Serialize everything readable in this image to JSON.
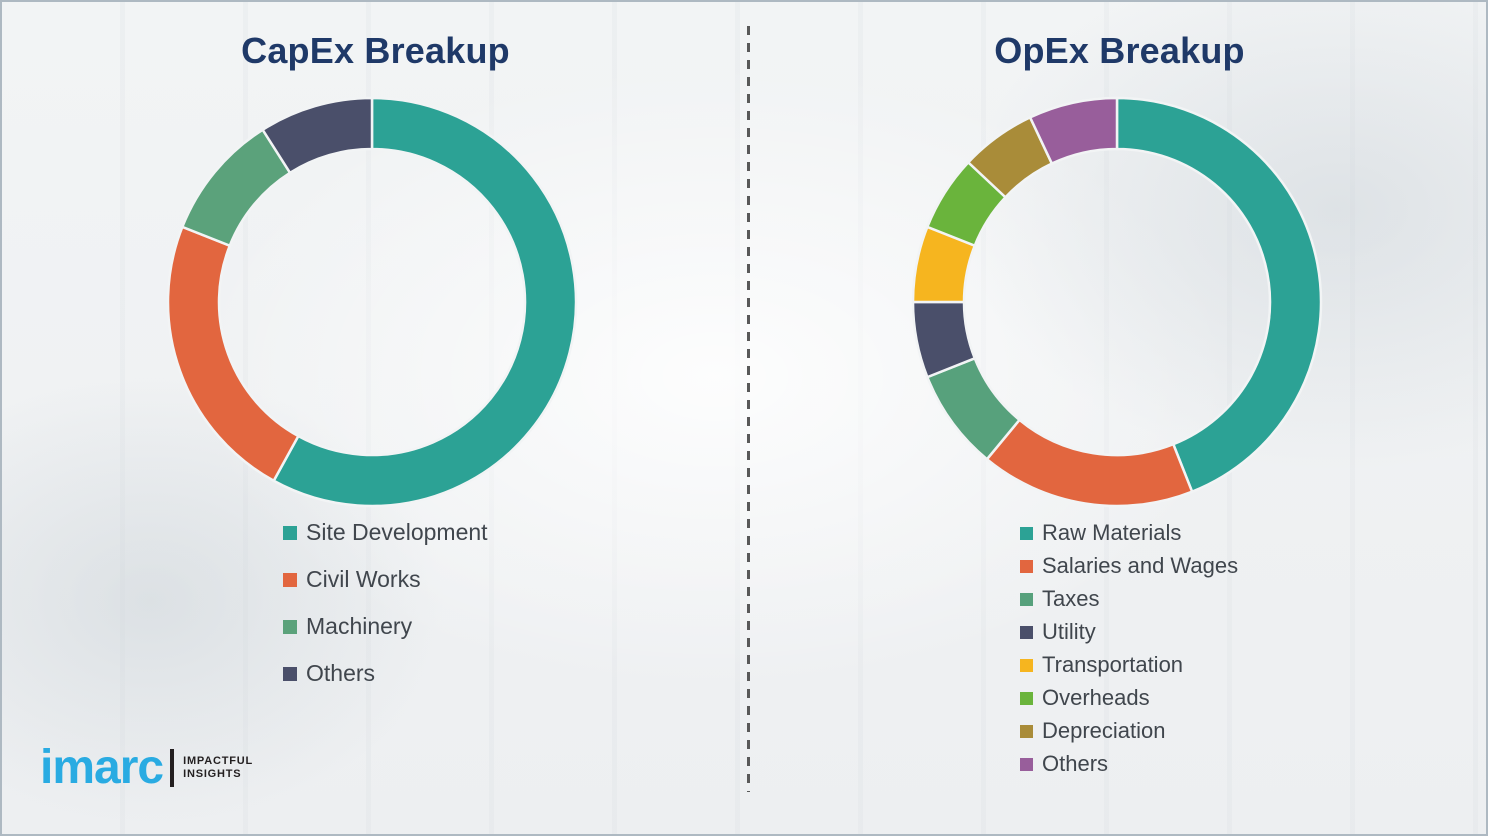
{
  "style": {
    "title_color": "#1F3968",
    "legend_text_color": "#40464D",
    "divider_color": "#595959",
    "canvas_border_color": "#AEB9C2",
    "brand_blue": "#29ABE2"
  },
  "chart_data": [
    {
      "type": "pie",
      "variant": "donut",
      "title": "CapEx Breakup",
      "categories": [
        "Site Development",
        "Civil Works",
        "Machinery",
        "Others"
      ],
      "values": [
        58,
        23,
        10,
        9
      ],
      "colors": [
        "#2CA295",
        "#E2663F",
        "#5BA27B",
        "#4A4F6A"
      ],
      "start_angle": "top",
      "direction": "clockwise",
      "inner_radius_ratio": 0.75,
      "legend_position": "below",
      "data_labels": "none"
    },
    {
      "type": "pie",
      "variant": "donut",
      "title": "OpEx Breakup",
      "categories": [
        "Raw Materials",
        "Salaries and Wages",
        "Taxes",
        "Utility",
        "Transportation",
        "Overheads",
        "Depreciation",
        "Others"
      ],
      "values": [
        44,
        17,
        8,
        6,
        6,
        6,
        6,
        7
      ],
      "colors": [
        "#2CA295",
        "#E2663F",
        "#57A17C",
        "#4A4F6A",
        "#F6B51F",
        "#6AB43C",
        "#A98C39",
        "#985E9B"
      ],
      "start_angle": "top",
      "direction": "clockwise",
      "inner_radius_ratio": 0.75,
      "legend_position": "below",
      "data_labels": "none"
    }
  ],
  "branding": {
    "logo_text": "imarc",
    "tagline_line1": "IMPACTFUL",
    "tagline_line2": "INSIGHTS"
  }
}
